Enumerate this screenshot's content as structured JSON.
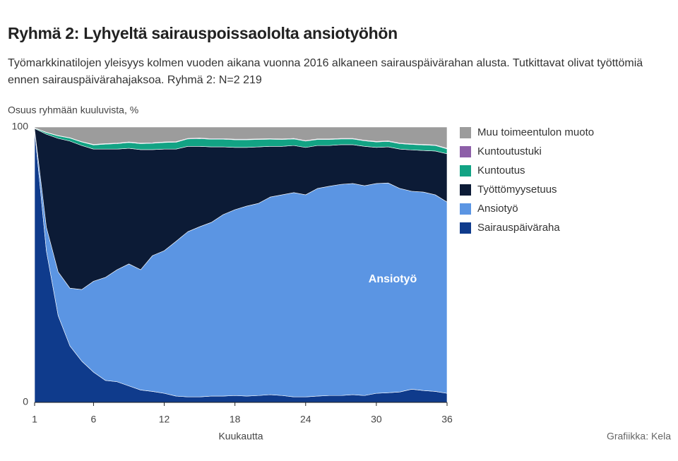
{
  "chart_data": {
    "type": "stacked_area",
    "title": "Ryhmä 2: Lyhyeltä sairauspoissaololta ansiotyöhön",
    "subtitle": "Työmarkkinatilojen yleisyys kolmen vuoden aikana vuonna 2016 alkaneen sairauspäivärahan alusta. Tutkittavat olivat työttömiä ennen sairauspäivärahajaksoa. Ryhmä 2: N=2 219",
    "y_label": "Osuus ryhmään kuuluvista, %",
    "x_label": "Kuukautta",
    "source": "Grafiikka: Kela",
    "annotation": "Ansiotyö",
    "x": [
      1,
      2,
      3,
      4,
      5,
      6,
      7,
      8,
      9,
      10,
      11,
      12,
      13,
      14,
      15,
      16,
      17,
      18,
      19,
      20,
      21,
      22,
      23,
      24,
      25,
      26,
      27,
      28,
      29,
      30,
      31,
      32,
      33,
      34,
      35,
      36
    ],
    "xlim": [
      1,
      36
    ],
    "xticks": [
      1,
      6,
      12,
      18,
      24,
      30,
      36
    ],
    "ylim": [
      0,
      100
    ],
    "yticks": [
      0,
      100
    ],
    "series": [
      {
        "name": "Sairauspäiväraha",
        "color": "#0f3b8c",
        "values": [
          99,
          55,
          31.5,
          20.5,
          15,
          11,
          8,
          7.5,
          6,
          4.5,
          4,
          3.3,
          2.3,
          2,
          2,
          2.3,
          2.3,
          2.5,
          2.3,
          2.5,
          2.8,
          2.5,
          2,
          2,
          2.3,
          2.5,
          2.5,
          2.8,
          2.5,
          3.3,
          3.5,
          3.8,
          4.8,
          4.3,
          4,
          3.3
        ]
      },
      {
        "name": "Ansiotyö",
        "color": "#5b95e3",
        "values": [
          0.3,
          8.6,
          15.9,
          21,
          26,
          33,
          37.4,
          40.7,
          44.3,
          43.7,
          49.3,
          51.8,
          56.2,
          60,
          61.8,
          63.1,
          65.9,
          67.5,
          69,
          69.8,
          71.8,
          72.9,
          74.2,
          73.4,
          75.4,
          76,
          76.7,
          76.7,
          76.2,
          76.2,
          76.2,
          73.9,
          71.9,
          72.1,
          71.4,
          69.5
        ]
      },
      {
        "name": "Työttömyysetuus",
        "color": "#0c1b36",
        "values": [
          0.2,
          33.8,
          48.5,
          53.4,
          52.3,
          48,
          46.6,
          43.8,
          42,
          43.6,
          38.5,
          36.9,
          33.5,
          31,
          29.2,
          27.4,
          24.6,
          22.6,
          21.3,
          20.5,
          18.4,
          17.6,
          17.1,
          17.2,
          15.6,
          14.8,
          14.4,
          14.1,
          14.3,
          13.1,
          13.1,
          14.3,
          15,
          15.1,
          15.9,
          17.5
        ]
      },
      {
        "name": "Kuntoutus",
        "color": "#12a384",
        "values": [
          0.2,
          0.6,
          0.9,
          1.1,
          1.3,
          1.5,
          1.8,
          2,
          2.1,
          2.2,
          2.3,
          2.4,
          2.5,
          2.7,
          2.8,
          2.8,
          2.8,
          2.8,
          2.8,
          2.7,
          2.6,
          2.5,
          2.4,
          2.3,
          2.2,
          2.2,
          2.1,
          2.1,
          2,
          2,
          2,
          2,
          2,
          2,
          2,
          1.8
        ]
      },
      {
        "name": "Kuntoutustuki",
        "color": "#8d5fa8",
        "values": [
          0,
          0.1,
          0.1,
          0.1,
          0.1,
          0.2,
          0.2,
          0.2,
          0.2,
          0.2,
          0.2,
          0.2,
          0.2,
          0.2,
          0.2,
          0.2,
          0.2,
          0.2,
          0.2,
          0.2,
          0.2,
          0.2,
          0.2,
          0.2,
          0.2,
          0.2,
          0.2,
          0.2,
          0.2,
          0.2,
          0.2,
          0.2,
          0.2,
          0.2,
          0.2,
          0.2
        ]
      },
      {
        "name": "Muu toimeentulon muoto",
        "color": "#9c9c9c",
        "values": [
          0.3,
          1.9,
          3.1,
          3.9,
          5.3,
          6.3,
          6,
          5.8,
          5.4,
          5.8,
          5.7,
          5.4,
          5.3,
          4.1,
          4,
          4.2,
          4.2,
          4.4,
          4.4,
          4.3,
          4.2,
          4.3,
          4.1,
          4.9,
          4.3,
          4.3,
          4.1,
          4.1,
          4.8,
          5.2,
          5,
          5.8,
          6.1,
          6.3,
          6.5,
          7.7
        ]
      }
    ]
  }
}
